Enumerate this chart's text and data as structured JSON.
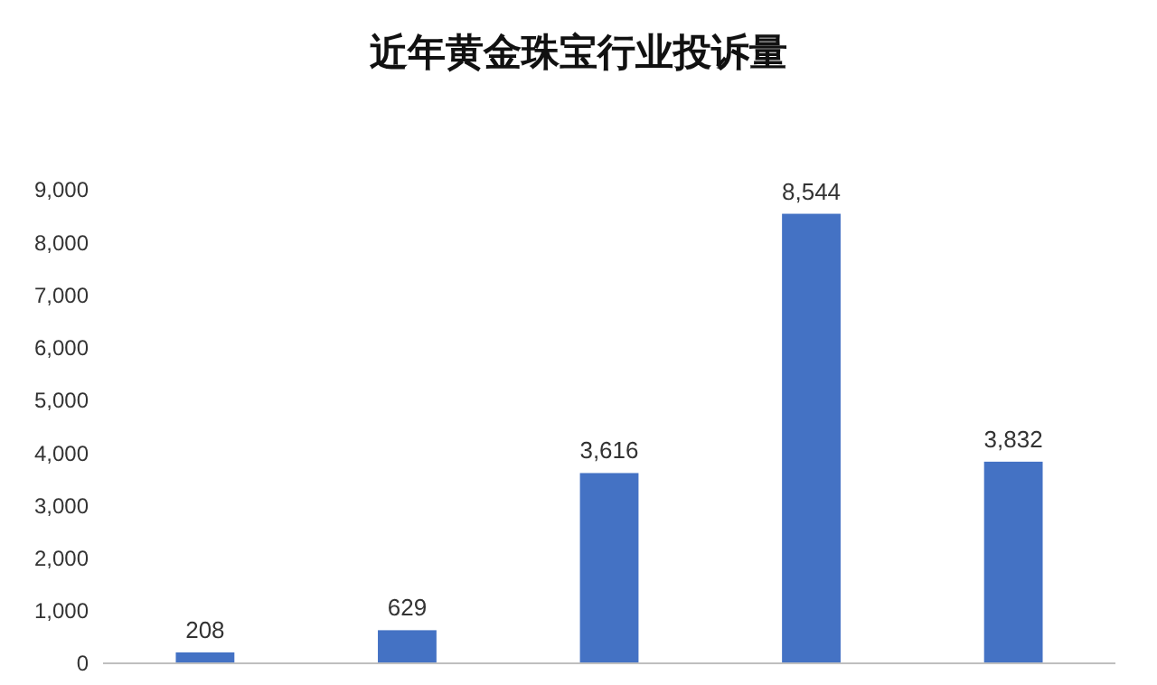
{
  "chart_data": {
    "type": "bar",
    "title": "近年黄金珠宝行业投诉量",
    "categories": [
      null,
      null,
      null,
      null,
      null
    ],
    "values": [
      208,
      629,
      3616,
      8544,
      3832
    ],
    "value_labels": [
      "208",
      "629",
      "3,616",
      "8,544",
      "3,832"
    ],
    "color": "#4472c4",
    "ylim": [
      0,
      9000
    ],
    "yticks": [
      {
        "value": 0,
        "label": "0"
      },
      {
        "value": 1000,
        "label": "1,000"
      },
      {
        "value": 2000,
        "label": "2,000"
      },
      {
        "value": 3000,
        "label": "3,000"
      },
      {
        "value": 4000,
        "label": "4,000"
      },
      {
        "value": 5000,
        "label": "5,000"
      },
      {
        "value": 6000,
        "label": "6,000"
      },
      {
        "value": 7000,
        "label": "7,000"
      },
      {
        "value": 8000,
        "label": "8,000"
      },
      {
        "value": 9000,
        "label": "9,000"
      }
    ],
    "grid": false
  }
}
